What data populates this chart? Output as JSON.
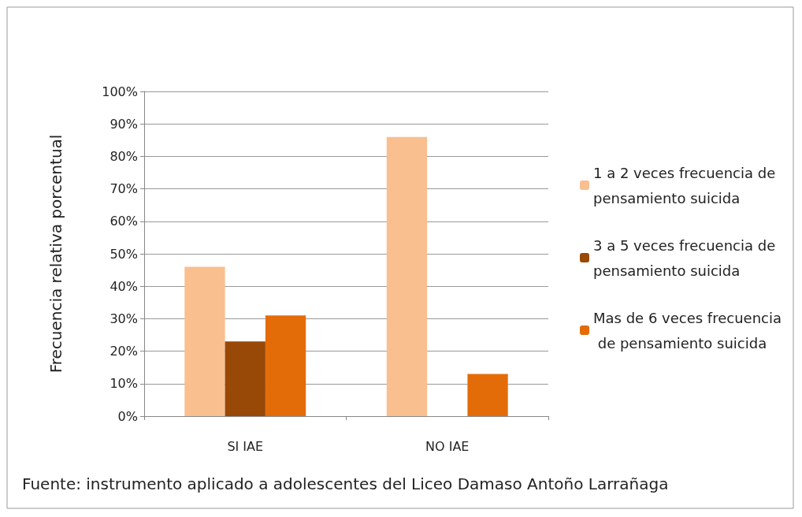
{
  "chart_data": {
    "type": "bar",
    "ylabel": "Frecuencia relativa porcentual",
    "categories": [
      "SI IAE",
      "NO IAE"
    ],
    "series": [
      {
        "name": "1 a 2 veces frecuencia de pensamiento suicida",
        "color": "#f9bf8f",
        "values": [
          46,
          86
        ]
      },
      {
        "name": "3 a 5 veces frecuencia de pensamiento suicida",
        "color": "#984807",
        "values": [
          23,
          null
        ]
      },
      {
        "name": "Mas de 6 veces frecuencia de pensamiento suicida",
        "color": "#e36c09",
        "values": [
          31,
          13
        ]
      }
    ],
    "ylim": [
      0,
      100
    ],
    "yticks": [
      {
        "value": 0,
        "label": "0%"
      },
      {
        "value": 10,
        "label": "10%"
      },
      {
        "value": 20,
        "label": "20%"
      },
      {
        "value": 30,
        "label": "30%"
      },
      {
        "value": 40,
        "label": "40%"
      },
      {
        "value": 50,
        "label": "50%"
      },
      {
        "value": 60,
        "label": "60%"
      },
      {
        "value": 70,
        "label": "70%"
      },
      {
        "value": 80,
        "label": "80%"
      },
      {
        "value": 90,
        "label": "90%"
      },
      {
        "value": 100,
        "label": "100%"
      }
    ],
    "grid": "y",
    "legend": "right",
    "annotations": [
      "Fuente: instrumento aplicado a adolescentes del Liceo Damaso Antoño Larrañaga"
    ]
  }
}
